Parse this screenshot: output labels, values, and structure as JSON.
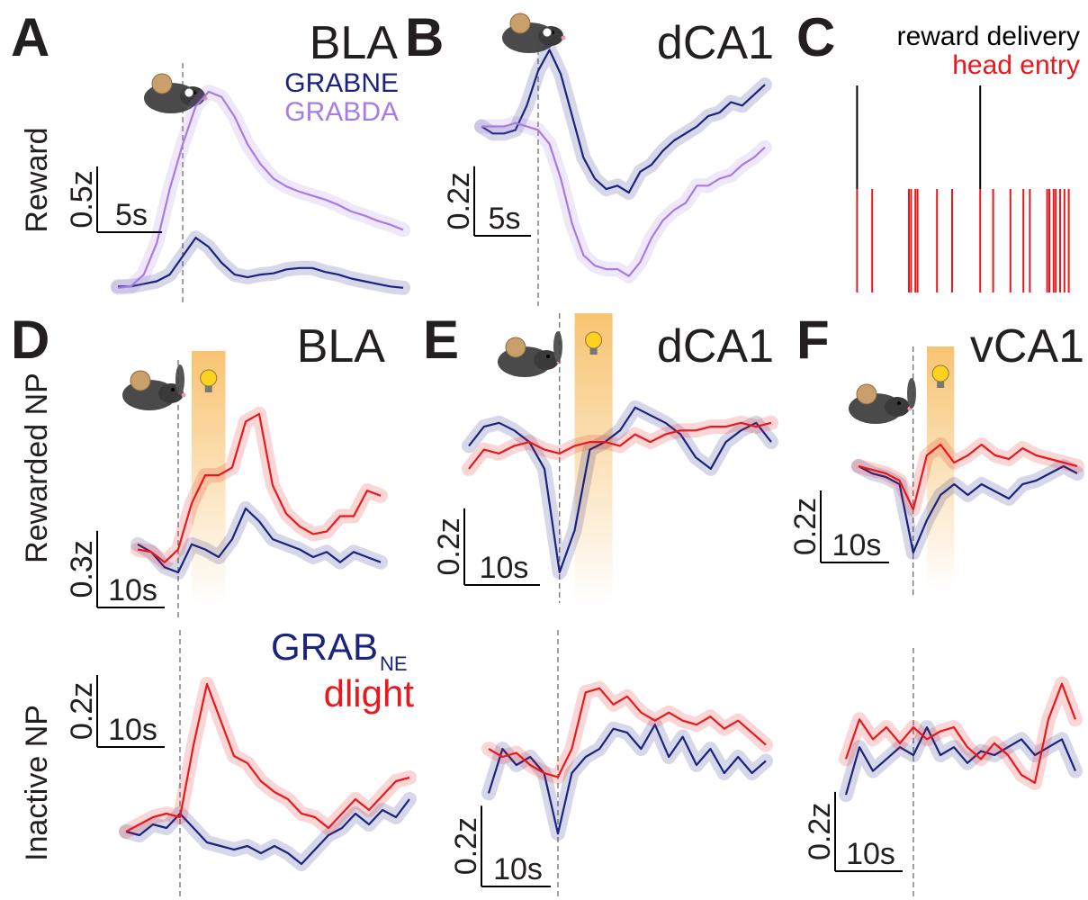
{
  "row_labels": [
    "Reward",
    "Rewarded NP",
    "Inactive NP"
  ],
  "chart_data": [
    {
      "type": "line",
      "panel": "A",
      "title": "BLA",
      "x": [
        -5,
        -4,
        -3,
        -2,
        -1,
        0,
        1,
        2,
        3,
        4,
        5,
        6,
        7,
        8,
        9,
        10,
        11,
        12,
        13,
        14,
        15,
        16,
        17
      ],
      "xlim": [
        -5,
        17
      ],
      "ylim": [
        0,
        1.71
      ],
      "scalebar": {
        "x": 5,
        "x_label": "5s",
        "y": 0.5,
        "y_label": "0.5z"
      },
      "series": [
        {
          "name": "GRABNE",
          "color": "#1a237e",
          "values": [
            0.08,
            0.08,
            0.1,
            0.12,
            0.17,
            0.31,
            0.45,
            0.38,
            0.26,
            0.17,
            0.15,
            0.17,
            0.18,
            0.21,
            0.22,
            0.22,
            0.19,
            0.17,
            0.14,
            0.12,
            0.1,
            0.08,
            0.07
          ]
        },
        {
          "name": "GRABDA",
          "color": "#a77ce3",
          "values": [
            0.07,
            0.08,
            0.17,
            0.41,
            0.82,
            1.16,
            1.45,
            1.56,
            1.52,
            1.37,
            1.16,
            1.01,
            0.9,
            0.84,
            0.8,
            0.77,
            0.74,
            0.7,
            0.65,
            0.62,
            0.58,
            0.55,
            0.51
          ]
        }
      ]
    },
    {
      "type": "line",
      "panel": "B",
      "title": "dCA1",
      "x": [
        -5,
        -4,
        -3,
        -2,
        -1,
        0,
        1,
        2,
        3,
        4,
        5,
        6,
        7,
        8,
        9,
        10,
        11,
        12,
        13,
        14,
        15,
        16,
        17,
        18,
        19,
        20
      ],
      "xlim": [
        -5,
        20
      ],
      "ylim": [
        0,
        0.75
      ],
      "scalebar": {
        "x": 5,
        "x_label": "5s",
        "y": 0.2,
        "y_label": "0.2z"
      },
      "series": [
        {
          "color": "#1a237e",
          "values": [
            0.49,
            0.47,
            0.47,
            0.48,
            0.55,
            0.65,
            0.71,
            0.64,
            0.52,
            0.4,
            0.34,
            0.31,
            0.32,
            0.3,
            0.36,
            0.38,
            0.42,
            0.45,
            0.47,
            0.49,
            0.52,
            0.53,
            0.56,
            0.55,
            0.58,
            0.61
          ]
        },
        {
          "color": "#a77ce3",
          "values": [
            0.49,
            0.49,
            0.49,
            0.5,
            0.49,
            0.48,
            0.44,
            0.34,
            0.21,
            0.12,
            0.09,
            0.08,
            0.08,
            0.06,
            0.1,
            0.17,
            0.22,
            0.25,
            0.27,
            0.32,
            0.32,
            0.34,
            0.35,
            0.38,
            0.4,
            0.43
          ]
        }
      ]
    },
    {
      "type": "raster",
      "panel": "C",
      "xlim": [
        0,
        100
      ],
      "series": [
        {
          "name": "reward delivery",
          "color": "#000000",
          "values": [
            1,
            58
          ]
        },
        {
          "name": "head entry",
          "color": "#e8191c",
          "values": [
            1,
            8,
            25,
            26,
            28,
            29,
            38,
            45,
            58,
            64,
            72,
            78,
            81,
            89,
            90,
            92,
            93,
            95,
            97,
            99
          ]
        }
      ]
    },
    {
      "type": "line",
      "panel": "D",
      "title": "BLA",
      "x": [
        -6,
        -4,
        -2,
        0,
        2,
        4,
        6,
        8,
        10,
        12,
        14,
        16,
        18,
        20,
        22,
        24,
        26,
        28,
        30
      ],
      "xlim": [
        -6,
        30
      ],
      "ylim": [
        0,
        0.88
      ],
      "light": [
        2,
        7
      ],
      "scalebar": {
        "x": 10,
        "x_label": "10s",
        "y": 0.3,
        "y_label": "0.3z"
      },
      "series": [
        {
          "color": "#1a237e",
          "values": [
            0.3,
            0.27,
            0.21,
            0.19,
            0.3,
            0.28,
            0.25,
            0.32,
            0.44,
            0.39,
            0.32,
            0.3,
            0.28,
            0.25,
            0.27,
            0.23,
            0.27,
            0.25,
            0.23
          ]
        },
        {
          "color": "#e8191c",
          "values": [
            0.28,
            0.27,
            0.23,
            0.28,
            0.46,
            0.57,
            0.57,
            0.6,
            0.78,
            0.81,
            0.53,
            0.42,
            0.37,
            0.34,
            0.35,
            0.41,
            0.41,
            0.51,
            0.49
          ]
        }
      ]
    },
    {
      "type": "line",
      "panel": "E",
      "title": "dCA1",
      "x": [
        -12,
        -10,
        -8,
        -6,
        -4,
        -2,
        0,
        2,
        4,
        6,
        8,
        10,
        12,
        14,
        16,
        18,
        20,
        22,
        24,
        26,
        28
      ],
      "xlim": [
        -12,
        28
      ],
      "ylim": [
        0,
        0.54
      ],
      "light": [
        2,
        7
      ],
      "scalebar": {
        "x": 10,
        "x_label": "10s",
        "y": 0.2,
        "y_label": "0.2z"
      },
      "series": [
        {
          "color": "#1a237e",
          "values": [
            0.41,
            0.46,
            0.47,
            0.45,
            0.42,
            0.35,
            0.08,
            0.19,
            0.4,
            0.42,
            0.45,
            0.51,
            0.49,
            0.47,
            0.44,
            0.38,
            0.35,
            0.42,
            0.45,
            0.47,
            0.42
          ]
        },
        {
          "color": "#e8191c",
          "values": [
            0.35,
            0.4,
            0.39,
            0.41,
            0.42,
            0.4,
            0.39,
            0.41,
            0.42,
            0.42,
            0.41,
            0.44,
            0.42,
            0.44,
            0.45,
            0.45,
            0.46,
            0.46,
            0.47,
            0.46,
            0.47
          ]
        }
      ]
    },
    {
      "type": "line",
      "panel": "F",
      "title": "vCA1",
      "x": [
        -8,
        -6,
        -4,
        -2,
        0,
        2,
        4,
        6,
        8,
        10,
        12,
        14,
        16,
        18,
        20,
        22,
        24
      ],
      "xlim": [
        -8,
        24
      ],
      "ylim": [
        0,
        0.475
      ],
      "light": [
        2,
        6
      ],
      "scalebar": {
        "x": 10,
        "x_label": "10s",
        "y": 0.2,
        "y_label": "0.2z"
      },
      "series": [
        {
          "color": "#1a237e",
          "values": [
            0.33,
            0.31,
            0.3,
            0.28,
            0.09,
            0.18,
            0.25,
            0.28,
            0.25,
            0.28,
            0.26,
            0.24,
            0.28,
            0.29,
            0.31,
            0.33,
            0.31
          ]
        },
        {
          "color": "#e8191c",
          "values": [
            0.33,
            0.32,
            0.31,
            0.29,
            0.21,
            0.36,
            0.39,
            0.34,
            0.36,
            0.39,
            0.36,
            0.35,
            0.38,
            0.36,
            0.35,
            0.34,
            0.33
          ]
        }
      ]
    },
    {
      "type": "line",
      "x": [
        -8,
        -6,
        -4,
        -2,
        0,
        2,
        4,
        6,
        8,
        10,
        12,
        14,
        16,
        18,
        20,
        22,
        24,
        26,
        28,
        30,
        32,
        34
      ],
      "xlim": [
        -8,
        34
      ],
      "ylim": [
        0,
        0.6
      ],
      "scalebar": {
        "x": 10,
        "x_label": "10s",
        "y": 0.2,
        "y_label": "0.2z"
      },
      "series": [
        {
          "name": "GRAB",
          "name_sub": "NE",
          "color": "#1a237e",
          "values": [
            0.14,
            0.13,
            0.16,
            0.15,
            0.19,
            0.15,
            0.11,
            0.1,
            0.09,
            0.1,
            0.08,
            0.1,
            0.08,
            0.05,
            0.09,
            0.13,
            0.15,
            0.19,
            0.16,
            0.2,
            0.18,
            0.23
          ]
        },
        {
          "name": "dlight",
          "color": "#e8191c",
          "values": [
            0.14,
            0.16,
            0.18,
            0.19,
            0.18,
            0.38,
            0.55,
            0.45,
            0.35,
            0.33,
            0.28,
            0.25,
            0.23,
            0.19,
            0.18,
            0.15,
            0.19,
            0.23,
            0.2,
            0.24,
            0.28,
            0.29
          ]
        }
      ]
    },
    {
      "type": "line",
      "x": [
        -10,
        -8,
        -6,
        -4,
        -2,
        0,
        2,
        4,
        6,
        8,
        10,
        12,
        14,
        16,
        18,
        20,
        22,
        24,
        26,
        28,
        30
      ],
      "xlim": [
        -10,
        30
      ],
      "ylim": [
        0,
        0.58
      ],
      "scalebar": {
        "x": 10,
        "x_label": "10s",
        "y": 0.2,
        "y_label": "0.2z"
      },
      "series": [
        {
          "color": "#1a237e",
          "values": [
            0.22,
            0.33,
            0.29,
            0.31,
            0.27,
            0.12,
            0.27,
            0.31,
            0.33,
            0.38,
            0.37,
            0.33,
            0.39,
            0.31,
            0.36,
            0.29,
            0.33,
            0.27,
            0.31,
            0.27,
            0.3
          ]
        },
        {
          "color": "#e8191c",
          "values": [
            0.33,
            0.31,
            0.32,
            0.29,
            0.27,
            0.26,
            0.33,
            0.47,
            0.48,
            0.44,
            0.46,
            0.42,
            0.4,
            0.42,
            0.4,
            0.39,
            0.41,
            0.38,
            0.4,
            0.37,
            0.34
          ]
        }
      ]
    },
    {
      "type": "line",
      "x": [
        -10,
        -8,
        -6,
        -4,
        -2,
        0,
        2,
        4,
        6,
        8,
        10,
        12,
        14,
        16,
        18,
        20,
        22,
        24
      ],
      "xlim": [
        -10,
        24
      ],
      "ylim": [
        0,
        0.59
      ],
      "scalebar": {
        "x": 10,
        "x_label": "10s",
        "y": 0.2,
        "y_label": "0.2z"
      },
      "series": [
        {
          "color": "#1a237e",
          "values": [
            0.22,
            0.34,
            0.28,
            0.31,
            0.34,
            0.32,
            0.39,
            0.32,
            0.34,
            0.3,
            0.33,
            0.32,
            0.34,
            0.36,
            0.32,
            0.34,
            0.36,
            0.28
          ]
        },
        {
          "color": "#e8191c",
          "values": [
            0.31,
            0.41,
            0.36,
            0.39,
            0.35,
            0.39,
            0.36,
            0.38,
            0.39,
            0.34,
            0.31,
            0.35,
            0.32,
            0.27,
            0.25,
            0.41,
            0.5,
            0.41
          ]
        }
      ]
    }
  ]
}
